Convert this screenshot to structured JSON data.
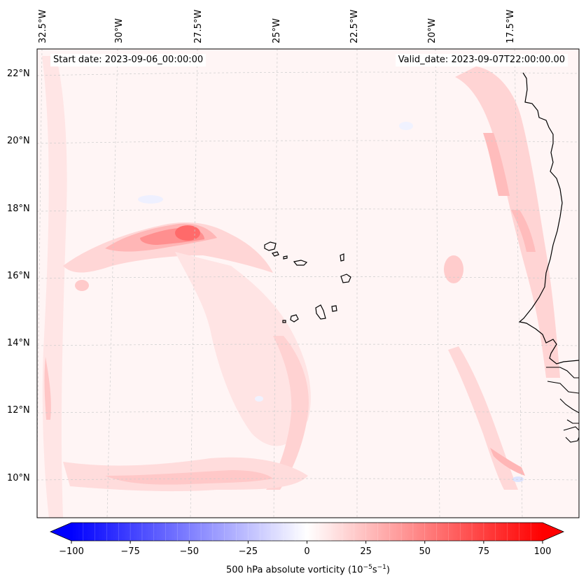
{
  "header": {
    "start_label": "Start date:",
    "start_value": "2023-09-06_00:00:00",
    "valid_label": "Valid_date:",
    "valid_value": "2023-09-07T22:00:00.00"
  },
  "map": {
    "lon_labels": [
      "32.5°W",
      "30°W",
      "27.5°W",
      "25°W",
      "22.5°W",
      "20°W",
      "17.5°W"
    ],
    "lat_labels": [
      "22°N",
      "20°N",
      "18°N",
      "16°N",
      "14°N",
      "12°N",
      "10°N"
    ],
    "features": [
      "vorticity-maximum",
      "cape-verde-islands",
      "west-african-coastline"
    ]
  },
  "colorbar": {
    "min": -100,
    "max": 100,
    "levels": 41,
    "tick_values": [
      -100,
      -75,
      -50,
      -25,
      0,
      25,
      50,
      75,
      100
    ],
    "tick_labels": [
      "−100",
      "−75",
      "−50",
      "−25",
      "0",
      "25",
      "50",
      "75",
      "100"
    ],
    "label_prefix": "500 hPa absolute vorticity (10",
    "label_exp1": "−5",
    "label_mid": "s",
    "label_exp2": "−1",
    "label_suffix": ")",
    "colormap": "bwr",
    "low_color": "#0000ff",
    "mid_color": "#ffffff",
    "high_color": "#ff0000"
  },
  "colors": {
    "background_field": "#fff5f5",
    "grid": "#cccccc",
    "coastline": "#000000"
  }
}
